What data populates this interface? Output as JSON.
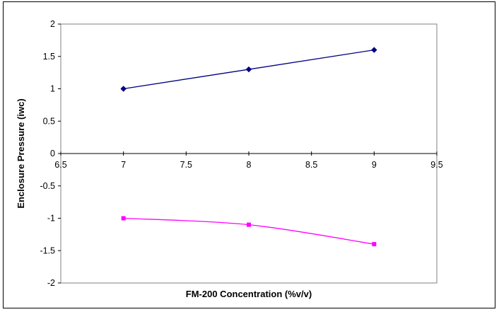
{
  "chart_data": {
    "type": "line",
    "title": "",
    "xlabel": "FM-200 Concentration (%v/v)",
    "ylabel": "Enclosure Pressure (iwc)",
    "xlim": [
      6.5,
      9.5
    ],
    "ylim": [
      -2,
      2
    ],
    "x_ticks": [
      "6.5",
      "7",
      "7.5",
      "8",
      "8.5",
      "9",
      "9.5"
    ],
    "y_ticks": [
      "2",
      "1.5",
      "1",
      "0.5",
      "0",
      "-0.5",
      "-1",
      "-1.5",
      "-2"
    ],
    "grid": false,
    "legend": "none",
    "series": [
      {
        "x": [
          7,
          8,
          9
        ],
        "values": [
          1.0,
          1.3,
          1.6
        ],
        "color": "#000080",
        "marker": "diamond",
        "smooth": false
      },
      {
        "x": [
          7,
          8,
          9
        ],
        "values": [
          -1.0,
          -1.1,
          -1.4
        ],
        "color": "#FF00FF",
        "marker": "square",
        "smooth": true
      }
    ]
  }
}
